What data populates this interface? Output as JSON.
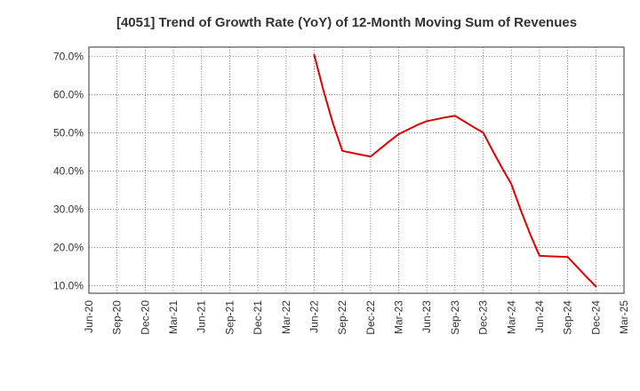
{
  "chart_data": {
    "type": "line",
    "title": "[4051]  Trend of Growth Rate (YoY) of 12-Month Moving Sum of Revenues",
    "xlabel": "",
    "ylabel": "",
    "x_ticks": [
      "Jun-20",
      "Sep-20",
      "Dec-20",
      "Mar-21",
      "Jun-21",
      "Sep-21",
      "Dec-21",
      "Mar-22",
      "Jun-22",
      "Sep-22",
      "Dec-22",
      "Mar-23",
      "Jun-23",
      "Sep-23",
      "Dec-23",
      "Mar-24",
      "Jun-24",
      "Sep-24",
      "Dec-24",
      "Mar-25"
    ],
    "y_ticks": [
      "10.0%",
      "20.0%",
      "30.0%",
      "40.0%",
      "50.0%",
      "60.0%",
      "70.0%"
    ],
    "ylim": [
      8.0,
      72.5
    ],
    "grid": true,
    "legend": "none",
    "series": [
      {
        "color": "#e00000",
        "points": [
          {
            "x": "Jun-22",
            "y": 70.5
          },
          {
            "x": "Jul-22",
            "y": 61.0
          },
          {
            "x": "Aug-22",
            "y": 52.5
          },
          {
            "x": "Sep-22",
            "y": 45.3
          },
          {
            "x": "Oct-22",
            "y": 44.8
          },
          {
            "x": "Nov-22",
            "y": 44.3
          },
          {
            "x": "Dec-22",
            "y": 43.8
          },
          {
            "x": "Jan-23",
            "y": 45.8
          },
          {
            "x": "Feb-23",
            "y": 47.8
          },
          {
            "x": "Mar-23",
            "y": 49.7
          },
          {
            "x": "Apr-23",
            "y": 50.9
          },
          {
            "x": "May-23",
            "y": 52.1
          },
          {
            "x": "Jun-23",
            "y": 53.1
          },
          {
            "x": "Jul-23",
            "y": 53.6
          },
          {
            "x": "Aug-23",
            "y": 54.1
          },
          {
            "x": "Sep-23",
            "y": 54.5
          },
          {
            "x": "Oct-23",
            "y": 53.0
          },
          {
            "x": "Nov-23",
            "y": 51.5
          },
          {
            "x": "Dec-23",
            "y": 50.1
          },
          {
            "x": "Jan-24",
            "y": 45.4
          },
          {
            "x": "Feb-24",
            "y": 40.9
          },
          {
            "x": "Mar-24",
            "y": 36.6
          },
          {
            "x": "Apr-24",
            "y": 29.8
          },
          {
            "x": "May-24",
            "y": 23.5
          },
          {
            "x": "Jun-24",
            "y": 17.8
          },
          {
            "x": "Jul-24",
            "y": 17.7
          },
          {
            "x": "Aug-24",
            "y": 17.6
          },
          {
            "x": "Sep-24",
            "y": 17.5
          },
          {
            "x": "Oct-24",
            "y": 14.9
          },
          {
            "x": "Nov-24",
            "y": 12.3
          },
          {
            "x": "Dec-24",
            "y": 9.8
          }
        ]
      }
    ]
  }
}
